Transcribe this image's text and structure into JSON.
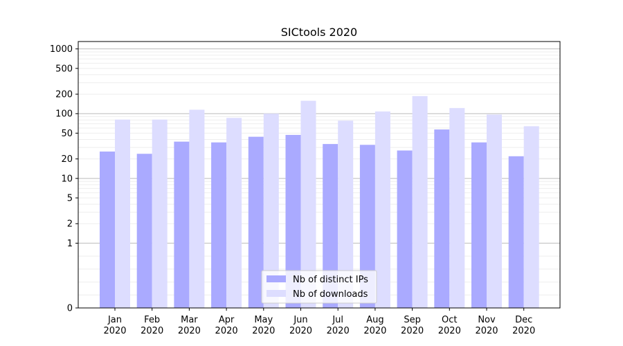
{
  "chart_data": {
    "type": "bar",
    "title": "SICtools 2020",
    "xlabel": "",
    "ylabel": "",
    "y_scale": "symlog",
    "ylim": [
      0,
      1300
    ],
    "y_ticks": [
      0,
      1,
      2,
      5,
      10,
      20,
      50,
      100,
      200,
      500,
      1000
    ],
    "y_tick_labels": [
      "0",
      "1",
      "2",
      "5",
      "10",
      "20",
      "50",
      "100",
      "200",
      "500",
      "1000"
    ],
    "categories": [
      "Jan\n2020",
      "Feb\n2020",
      "Mar\n2020",
      "Apr\n2020",
      "May\n2020",
      "Jun\n2020",
      "Jul\n2020",
      "Aug\n2020",
      "Sep\n2020",
      "Oct\n2020",
      "Nov\n2020",
      "Dec\n2020"
    ],
    "series": [
      {
        "name": "Nb of distinct IPs",
        "color": "#aaaaff",
        "values": [
          26,
          24,
          37,
          36,
          44,
          47,
          34,
          33,
          27,
          57,
          36,
          22
        ]
      },
      {
        "name": "Nb of downloads",
        "color": "#ddddff",
        "values": [
          81,
          81,
          115,
          86,
          100,
          158,
          78,
          108,
          187,
          122,
          97,
          64
        ]
      }
    ],
    "grid": true,
    "legend_position": "lower-center"
  }
}
